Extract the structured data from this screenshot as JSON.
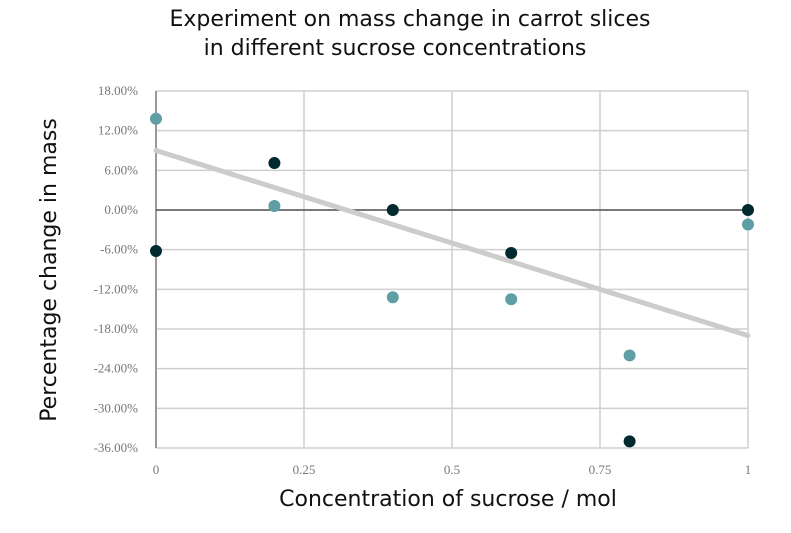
{
  "chart_data": {
    "type": "scatter",
    "title_lines": [
      "Experiment on mass change in carrot slices",
      "in different sucrose concentrations"
    ],
    "xlabel": "Concentration of sucrose / mol",
    "ylabel": "Percentage change in mass",
    "xlim": [
      0,
      1
    ],
    "ylim": [
      -36,
      18
    ],
    "x_ticks": [
      0,
      0.25,
      0.5,
      0.75,
      1
    ],
    "x_tick_labels": [
      "0",
      "0.25",
      "0.5",
      "0.75",
      "1"
    ],
    "y_ticks": [
      18,
      12,
      6,
      0,
      -6,
      -12,
      -18,
      -24,
      -30,
      -36
    ],
    "y_tick_labels": [
      "18.00%",
      "12.00%",
      "6.00%",
      "0.00%",
      "-6.00%",
      "-12.00%",
      "-18.00%",
      "-24.00%",
      "-30.00%",
      "-36.00%"
    ],
    "grid": true,
    "series": [
      {
        "color": "#5f9ea4",
        "points": [
          [
            0,
            13.8
          ],
          [
            0.2,
            0.6
          ],
          [
            0.4,
            -13.2
          ],
          [
            0.6,
            -13.5
          ],
          [
            0.8,
            -22
          ],
          [
            1,
            -2.2
          ]
        ]
      },
      {
        "color": "#002a2e",
        "points": [
          [
            0,
            -6.2
          ],
          [
            0.2,
            7.1
          ],
          [
            0.4,
            0
          ],
          [
            0.6,
            -6.5
          ],
          [
            0.8,
            -35
          ],
          [
            1,
            0
          ]
        ]
      }
    ],
    "trendline": {
      "color": "#cccccc",
      "points": [
        [
          0,
          9
        ],
        [
          1,
          -19
        ]
      ]
    }
  }
}
